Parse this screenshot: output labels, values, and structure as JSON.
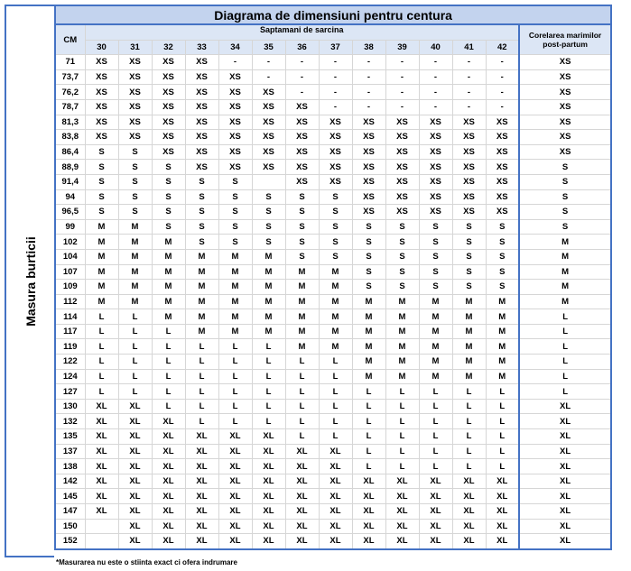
{
  "title": "Diagrama de dimensiuni pentru centura",
  "side_label": "Masura burticii",
  "cm_header": "CM",
  "weeks_header": "Saptamani de sarcina",
  "postpartum_header": "Corelarea marimilor post-partum",
  "weeks": [
    30,
    31,
    32,
    33,
    34,
    35,
    36,
    37,
    38,
    39,
    40,
    41,
    42
  ],
  "rows": [
    {
      "cm": "71",
      "sizes": [
        "XS",
        "XS",
        "XS",
        "XS",
        "-",
        "-",
        "-",
        "-",
        "-",
        "-",
        "-",
        "-",
        "-"
      ],
      "postpartum": "XS"
    },
    {
      "cm": "73,7",
      "sizes": [
        "XS",
        "XS",
        "XS",
        "XS",
        "XS",
        "-",
        "-",
        "-",
        "-",
        "-",
        "-",
        "-",
        "-"
      ],
      "postpartum": "XS"
    },
    {
      "cm": "76,2",
      "sizes": [
        "XS",
        "XS",
        "XS",
        "XS",
        "XS",
        "XS",
        "-",
        "-",
        "-",
        "-",
        "-",
        "-",
        "-"
      ],
      "postpartum": "XS"
    },
    {
      "cm": "78,7",
      "sizes": [
        "XS",
        "XS",
        "XS",
        "XS",
        "XS",
        "XS",
        "XS",
        "-",
        "-",
        "-",
        "-",
        "-",
        "-"
      ],
      "postpartum": "XS"
    },
    {
      "cm": "81,3",
      "sizes": [
        "XS",
        "XS",
        "XS",
        "XS",
        "XS",
        "XS",
        "XS",
        "XS",
        "XS",
        "XS",
        "XS",
        "XS",
        "XS"
      ],
      "postpartum": "XS"
    },
    {
      "cm": "83,8",
      "sizes": [
        "XS",
        "XS",
        "XS",
        "XS",
        "XS",
        "XS",
        "XS",
        "XS",
        "XS",
        "XS",
        "XS",
        "XS",
        "XS"
      ],
      "postpartum": "XS"
    },
    {
      "cm": "86,4",
      "sizes": [
        "S",
        "S",
        "XS",
        "XS",
        "XS",
        "XS",
        "XS",
        "XS",
        "XS",
        "XS",
        "XS",
        "XS",
        "XS"
      ],
      "postpartum": "XS"
    },
    {
      "cm": "88,9",
      "sizes": [
        "S",
        "S",
        "S",
        "XS",
        "XS",
        "XS",
        "XS",
        "XS",
        "XS",
        "XS",
        "XS",
        "XS",
        "XS"
      ],
      "postpartum": "S"
    },
    {
      "cm": "91,4",
      "sizes": [
        "S",
        "S",
        "S",
        "S",
        "S",
        null,
        "XS",
        "XS",
        "XS",
        "XS",
        "XS",
        "XS",
        "XS"
      ],
      "postpartum": "S"
    },
    {
      "cm": "94",
      "sizes": [
        "S",
        "S",
        "S",
        "S",
        "S",
        "S",
        "S",
        "S",
        "XS",
        "XS",
        "XS",
        "XS",
        "XS"
      ],
      "postpartum": "S"
    },
    {
      "cm": "96,5",
      "sizes": [
        "S",
        "S",
        "S",
        "S",
        "S",
        "S",
        "S",
        "S",
        "XS",
        "XS",
        "XS",
        "XS",
        "XS"
      ],
      "postpartum": "S"
    },
    {
      "cm": "99",
      "sizes": [
        "M",
        "M",
        "S",
        "S",
        "S",
        "S",
        "S",
        "S",
        "S",
        "S",
        "S",
        "S",
        "S"
      ],
      "postpartum": "S"
    },
    {
      "cm": "102",
      "sizes": [
        "M",
        "M",
        "M",
        "S",
        "S",
        "S",
        "S",
        "S",
        "S",
        "S",
        "S",
        "S",
        "S"
      ],
      "postpartum": "M"
    },
    {
      "cm": "104",
      "sizes": [
        "M",
        "M",
        "M",
        "M",
        "M",
        "M",
        "S",
        "S",
        "S",
        "S",
        "S",
        "S",
        "S"
      ],
      "postpartum": "M"
    },
    {
      "cm": "107",
      "sizes": [
        "M",
        "M",
        "M",
        "M",
        "M",
        "M",
        "M",
        "M",
        "S",
        "S",
        "S",
        "S",
        "S"
      ],
      "postpartum": "M"
    },
    {
      "cm": "109",
      "sizes": [
        "M",
        "M",
        "M",
        "M",
        "M",
        "M",
        "M",
        "M",
        "S",
        "S",
        "S",
        "S",
        "S"
      ],
      "postpartum": "M"
    },
    {
      "cm": "112",
      "sizes": [
        "M",
        "M",
        "M",
        "M",
        "M",
        "M",
        "M",
        "M",
        "M",
        "M",
        "M",
        "M",
        "M"
      ],
      "postpartum": "M"
    },
    {
      "cm": "114",
      "sizes": [
        "L",
        "L",
        "M",
        "M",
        "M",
        "M",
        "M",
        "M",
        "M",
        "M",
        "M",
        "M",
        "M"
      ],
      "postpartum": "L"
    },
    {
      "cm": "117",
      "sizes": [
        "L",
        "L",
        "L",
        "M",
        "M",
        "M",
        "M",
        "M",
        "M",
        "M",
        "M",
        "M",
        "M"
      ],
      "postpartum": "L"
    },
    {
      "cm": "119",
      "sizes": [
        "L",
        "L",
        "L",
        "L",
        "L",
        "L",
        "M",
        "M",
        "M",
        "M",
        "M",
        "M",
        "M"
      ],
      "postpartum": "L"
    },
    {
      "cm": "122",
      "sizes": [
        "L",
        "L",
        "L",
        "L",
        "L",
        "L",
        "L",
        "L",
        "M",
        "M",
        "M",
        "M",
        "M"
      ],
      "postpartum": "L"
    },
    {
      "cm": "124",
      "sizes": [
        "L",
        "L",
        "L",
        "L",
        "L",
        "L",
        "L",
        "L",
        "M",
        "M",
        "M",
        "M",
        "M"
      ],
      "postpartum": "L"
    },
    {
      "cm": "127",
      "sizes": [
        "L",
        "L",
        "L",
        "L",
        "L",
        "L",
        "L",
        "L",
        "L",
        "L",
        "L",
        "L",
        "L"
      ],
      "postpartum": "L"
    },
    {
      "cm": "130",
      "sizes": [
        "XL",
        "XL",
        "L",
        "L",
        "L",
        "L",
        "L",
        "L",
        "L",
        "L",
        "L",
        "L",
        "L"
      ],
      "postpartum": "XL"
    },
    {
      "cm": "132",
      "sizes": [
        "XL",
        "XL",
        "XL",
        "L",
        "L",
        "L",
        "L",
        "L",
        "L",
        "L",
        "L",
        "L",
        "L"
      ],
      "postpartum": "XL"
    },
    {
      "cm": "135",
      "sizes": [
        "XL",
        "XL",
        "XL",
        "XL",
        "XL",
        "XL",
        "L",
        "L",
        "L",
        "L",
        "L",
        "L",
        "L"
      ],
      "postpartum": "XL"
    },
    {
      "cm": "137",
      "sizes": [
        "XL",
        "XL",
        "XL",
        "XL",
        "XL",
        "XL",
        "XL",
        "XL",
        "L",
        "L",
        "L",
        "L",
        "L"
      ],
      "postpartum": "XL"
    },
    {
      "cm": "138",
      "sizes": [
        "XL",
        "XL",
        "XL",
        "XL",
        "XL",
        "XL",
        "XL",
        "XL",
        "L",
        "L",
        "L",
        "L",
        "L"
      ],
      "postpartum": "XL"
    },
    {
      "cm": "142",
      "sizes": [
        "XL",
        "XL",
        "XL",
        "XL",
        "XL",
        "XL",
        "XL",
        "XL",
        "XL",
        "XL",
        "XL",
        "XL",
        "XL"
      ],
      "postpartum": "XL"
    },
    {
      "cm": "145",
      "sizes": [
        "XL",
        "XL",
        "XL",
        "XL",
        "XL",
        "XL",
        "XL",
        "XL",
        "XL",
        "XL",
        "XL",
        "XL",
        "XL"
      ],
      "postpartum": "XL"
    },
    {
      "cm": "147",
      "sizes": [
        "XL",
        "XL",
        "XL",
        "XL",
        "XL",
        "XL",
        "XL",
        "XL",
        "XL",
        "XL",
        "XL",
        "XL",
        "XL"
      ],
      "postpartum": "XL"
    },
    {
      "cm": "150",
      "sizes": [
        null,
        "XL",
        "XL",
        "XL",
        "XL",
        "XL",
        "XL",
        "XL",
        "XL",
        "XL",
        "XL",
        "XL",
        "XL"
      ],
      "postpartum": "XL"
    },
    {
      "cm": "152",
      "sizes": [
        null,
        "XL",
        "XL",
        "XL",
        "XL",
        "XL",
        "XL",
        "XL",
        "XL",
        "XL",
        "XL",
        "XL",
        "XL"
      ],
      "postpartum": "XL"
    }
  ],
  "footnote": "*Masurarea nu este o stiinta exact ci ofera indrumare"
}
